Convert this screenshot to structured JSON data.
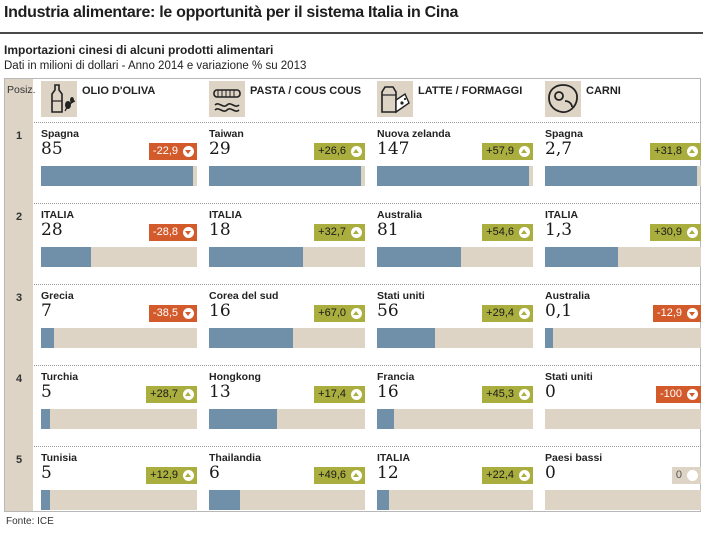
{
  "title": "Industria alimentare: le opportunità per il sistema Italia in Cina",
  "subtitle": "Importazioni cinesi di alcuni prodotti alimentari",
  "subnote": "Dati in milioni di dollari - Anno 2014 e variazione % su 2013",
  "position_header": "Posiz.",
  "ranks": [
    "1",
    "2",
    "3",
    "4",
    "5"
  ],
  "source": "Fonte: ICE",
  "colors": {
    "bar": "#6f90a8",
    "track": "#ddd4c6",
    "positive": "#a9ae3e",
    "negative": "#d35a2a"
  },
  "chart_data": {
    "type": "bar",
    "title": "Industria alimentare: le opportunità per il sistema Italia in Cina",
    "subtitle": "Importazioni cinesi di alcuni prodotti alimentari",
    "unit": "milioni di dollari - Anno 2014",
    "change_label": "variazione % su 2013",
    "categories": [
      {
        "name": "OLIO D'OLIVA",
        "icon": "olive-oil-icon",
        "entries": [
          {
            "rank": 1,
            "country": "Spagna",
            "value": 85,
            "value_label": "85",
            "change": -22.9,
            "change_label": "-22,9"
          },
          {
            "rank": 2,
            "country": "ITALIA",
            "value": 28,
            "value_label": "28",
            "change": -28.8,
            "change_label": "-28,8"
          },
          {
            "rank": 3,
            "country": "Grecia",
            "value": 7,
            "value_label": "7",
            "change": -38.5,
            "change_label": "-38,5"
          },
          {
            "rank": 4,
            "country": "Turchia",
            "value": 5,
            "value_label": "5",
            "change": 28.7,
            "change_label": "+28,7"
          },
          {
            "rank": 5,
            "country": "Tunisia",
            "value": 5,
            "value_label": "5",
            "change": 12.9,
            "change_label": "+12,9"
          }
        ]
      },
      {
        "name": "PASTA / COUS COUS",
        "icon": "pasta-icon",
        "entries": [
          {
            "rank": 1,
            "country": "Taiwan",
            "value": 29,
            "value_label": "29",
            "change": 26.6,
            "change_label": "+26,6"
          },
          {
            "rank": 2,
            "country": "ITALIA",
            "value": 18,
            "value_label": "18",
            "change": 32.7,
            "change_label": "+32,7"
          },
          {
            "rank": 3,
            "country": "Corea del sud",
            "value": 16,
            "value_label": "16",
            "change": 67.0,
            "change_label": "+67,0"
          },
          {
            "rank": 4,
            "country": "Hongkong",
            "value": 13,
            "value_label": "13",
            "change": 17.4,
            "change_label": "+17,4"
          },
          {
            "rank": 5,
            "country": "Thailandia",
            "value": 6,
            "value_label": "6",
            "change": 49.6,
            "change_label": "+49,6"
          }
        ]
      },
      {
        "name": "LATTE / FORMAGGI",
        "icon": "milk-cheese-icon",
        "entries": [
          {
            "rank": 1,
            "country": "Nuova zelanda",
            "value": 147,
            "value_label": "147",
            "change": 57.9,
            "change_label": "+57,9"
          },
          {
            "rank": 2,
            "country": "Australia",
            "value": 81,
            "value_label": "81",
            "change": 54.6,
            "change_label": "+54,6"
          },
          {
            "rank": 3,
            "country": "Stati uniti",
            "value": 56,
            "value_label": "56",
            "change": 29.4,
            "change_label": "+29,4"
          },
          {
            "rank": 4,
            "country": "Francia",
            "value": 16,
            "value_label": "16",
            "change": 45.3,
            "change_label": "+45,3"
          },
          {
            "rank": 5,
            "country": "ITALIA",
            "value": 12,
            "value_label": "12",
            "change": 22.4,
            "change_label": "+22,4"
          }
        ]
      },
      {
        "name": "CARNI",
        "icon": "meat-icon",
        "entries": [
          {
            "rank": 1,
            "country": "Spagna",
            "value": 2.7,
            "value_label": "2,7",
            "change": 31.8,
            "change_label": "+31,8"
          },
          {
            "rank": 2,
            "country": "ITALIA",
            "value": 1.3,
            "value_label": "1,3",
            "change": 30.9,
            "change_label": "+30,9"
          },
          {
            "rank": 3,
            "country": "Australia",
            "value": 0.1,
            "value_label": "0,1",
            "change": -12.9,
            "change_label": "-12,9"
          },
          {
            "rank": 4,
            "country": "Stati uniti",
            "value": 0,
            "value_label": "0",
            "change": -100,
            "change_label": "-100"
          },
          {
            "rank": 5,
            "country": "Paesi bassi",
            "value": 0,
            "value_label": "0",
            "change": 0,
            "change_label": "0"
          }
        ]
      }
    ]
  }
}
